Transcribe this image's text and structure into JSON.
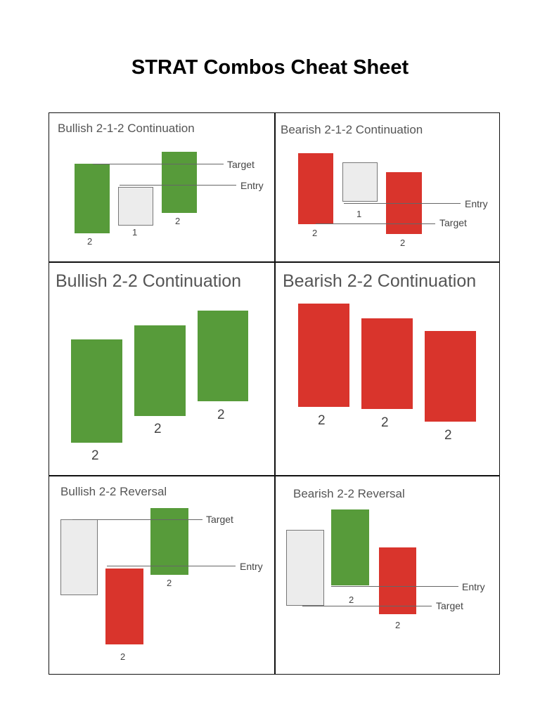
{
  "title": "STRAT Combos Cheat Sheet",
  "colors": {
    "bull": "#579b3a",
    "bear": "#d9342c",
    "inside": "#ececec"
  },
  "panels": {
    "bull212": {
      "title": "Bullish 2-1-2 Continuation",
      "candles": [
        "2",
        "1",
        "2"
      ],
      "target": "Target",
      "entry": "Entry"
    },
    "bear212": {
      "title": "Bearish 2-1-2 Continuation",
      "candles": [
        "2",
        "1",
        "2"
      ],
      "target": "Target",
      "entry": "Entry"
    },
    "bull22c": {
      "title": "Bullish 2-2 Continuation",
      "candles": [
        "2",
        "2",
        "2"
      ]
    },
    "bear22c": {
      "title": "Bearish 2-2 Continuation",
      "candles": [
        "2",
        "2",
        "2"
      ]
    },
    "bull22r": {
      "title": "Bullish 2-2 Reversal",
      "candles": [
        "2"
      ],
      "trailing": "2",
      "target": "Target",
      "entry": "Entry"
    },
    "bear22r": {
      "title": "Bearish 2-2 Reversal",
      "candles": [
        "2",
        "2"
      ],
      "target": "Target",
      "entry": "Entry"
    }
  }
}
